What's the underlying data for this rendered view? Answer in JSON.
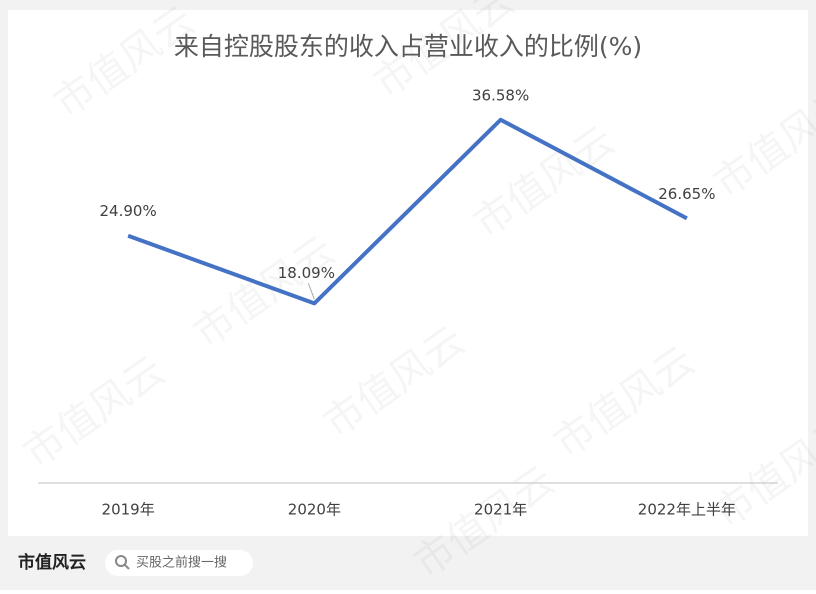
{
  "chart_data": {
    "type": "line",
    "title": "来自控股股东的收入占营业收入的比例(%)",
    "categories": [
      "2019年",
      "2020年",
      "2021年",
      "2022年上半年"
    ],
    "series": [
      {
        "name": "比例",
        "color": "#4472c4",
        "values": [
          24.9,
          18.09,
          36.58,
          26.65
        ],
        "value_labels": [
          "24.90%",
          "18.09%",
          "36.58%",
          "26.65%"
        ]
      }
    ]
  },
  "footer": {
    "brand": "市值风云",
    "search": "买股之前搜一搜"
  },
  "watermark": "市值风云"
}
